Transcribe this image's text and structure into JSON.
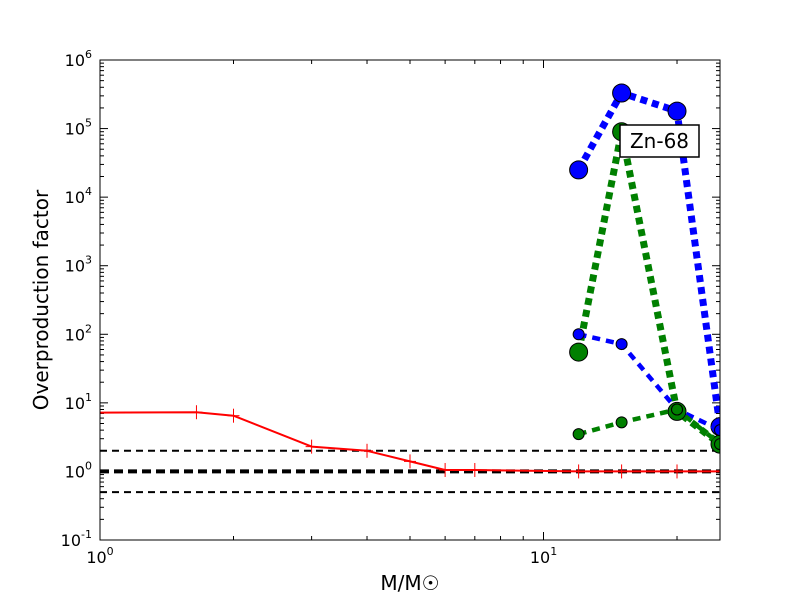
{
  "chart_data": {
    "type": "line",
    "xscale": "log",
    "yscale": "log",
    "xlim": [
      1,
      25
    ],
    "ylim": [
      0.1,
      1000000
    ],
    "xlabel": "M/M☉",
    "ylabel": "Overproduction factor",
    "x_ticks": [
      {
        "value": 1,
        "base": "10",
        "exp": "0"
      },
      {
        "value": 10,
        "base": "10",
        "exp": "1"
      }
    ],
    "y_ticks": [
      {
        "value": 0.1,
        "base": "10",
        "exp": "-1"
      },
      {
        "value": 1,
        "base": "10",
        "exp": "0"
      },
      {
        "value": 10,
        "base": "10",
        "exp": "1"
      },
      {
        "value": 100,
        "base": "10",
        "exp": "2"
      },
      {
        "value": 1000,
        "base": "10",
        "exp": "3"
      },
      {
        "value": 10000,
        "base": "10",
        "exp": "4"
      },
      {
        "value": 100000,
        "base": "10",
        "exp": "5"
      },
      {
        "value": 1000000,
        "base": "10",
        "exp": "6"
      }
    ],
    "annotation": "Zn-68",
    "hlines": [
      {
        "y": 2.0,
        "style": "dashed",
        "color": "#000000",
        "weight": "thin"
      },
      {
        "y": 1.0,
        "style": "dashed",
        "color": "#000000",
        "weight": "thick"
      },
      {
        "y": 0.5,
        "style": "dashed",
        "color": "#000000",
        "weight": "thin"
      }
    ],
    "series": [
      {
        "color": "#ff0000",
        "style": "solid",
        "marker": "plus",
        "x": [
          1.0,
          1.65,
          2.0,
          3.0,
          4.0,
          5.0,
          6.0,
          7.0,
          12.0,
          15.0,
          20.0,
          25.0
        ],
        "y": [
          7.2,
          7.3,
          6.5,
          2.3,
          2.0,
          1.4,
          1.05,
          1.05,
          1.0,
          1.0,
          1.0,
          1.0
        ]
      },
      {
        "color": "#0000ff",
        "style": "dotted",
        "marker": "circle",
        "size": "large",
        "x": [
          12,
          15,
          20,
          25
        ],
        "y": [
          25000,
          330000,
          180000,
          4.5
        ]
      },
      {
        "color": "#008000",
        "style": "dotted",
        "marker": "circle",
        "size": "large",
        "x": [
          12,
          15,
          20,
          25
        ],
        "y": [
          55,
          90000,
          7.5,
          2.5
        ]
      },
      {
        "color": "#0000ff",
        "style": "dashed",
        "marker": "circle",
        "size": "small",
        "x": [
          12,
          15,
          20,
          25
        ],
        "y": [
          100,
          72,
          8,
          4
        ]
      },
      {
        "color": "#008000",
        "style": "dashed",
        "marker": "circle",
        "size": "small",
        "x": [
          12,
          15,
          20,
          25
        ],
        "y": [
          3.5,
          5.2,
          8,
          2.5
        ]
      }
    ]
  }
}
